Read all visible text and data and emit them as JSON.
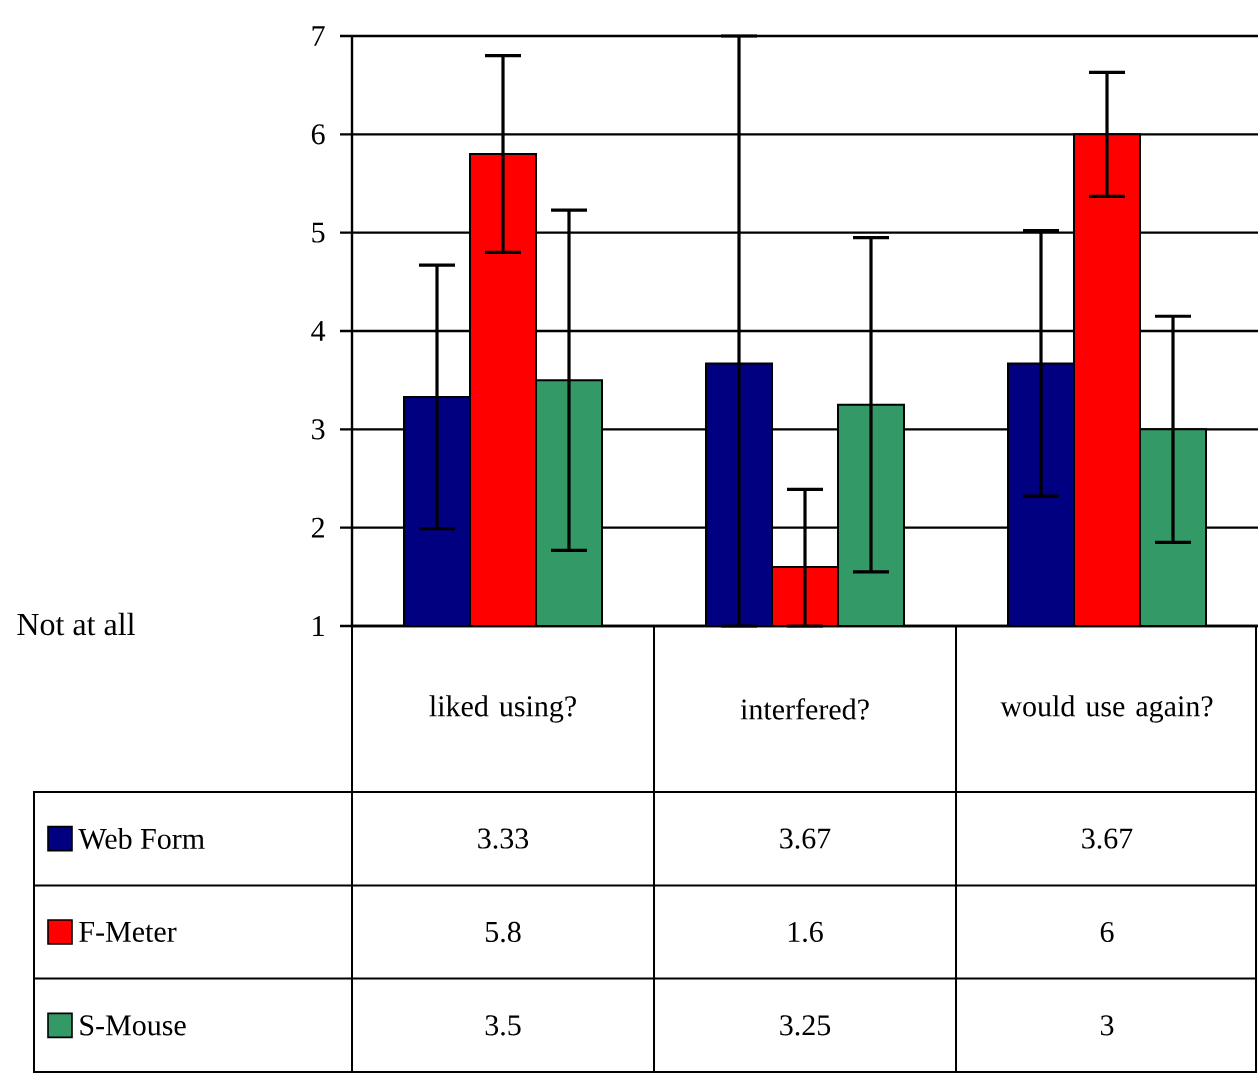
{
  "chart_data": {
    "type": "bar",
    "categories": [
      "liked using?",
      "interfered?",
      "would use again?"
    ],
    "series": [
      {
        "name": "Web Form",
        "color": "#000080",
        "values": [
          3.33,
          3.67,
          3.67
        ],
        "errors": [
          1.34,
          [
            1,
            7
          ],
          1.35
        ]
      },
      {
        "name": "F-Meter",
        "color": "#ff0000",
        "values": [
          5.8,
          1.6,
          6
        ],
        "errors": [
          1.0,
          [
            1,
            2.39
          ],
          0.63
        ]
      },
      {
        "name": "S-Mouse",
        "color": "#339966",
        "values": [
          3.5,
          3.25,
          3
        ],
        "errors": [
          1.73,
          1.7,
          1.15
        ]
      }
    ],
    "ylim": [
      1,
      7
    ],
    "yticks": [
      1,
      2,
      3,
      4,
      5,
      6,
      7
    ],
    "grid": "y",
    "legend": "bottom",
    "data_labels": true,
    "annotations": [
      "Not at all"
    ]
  }
}
